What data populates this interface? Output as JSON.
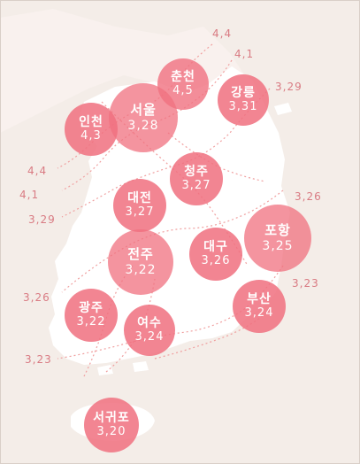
{
  "map": {
    "cities": [
      {
        "name": "서울",
        "date": "3,28"
      },
      {
        "name": "춘천",
        "date": "4,5"
      },
      {
        "name": "강릉",
        "date": "3,31"
      },
      {
        "name": "인천",
        "date": "4,3"
      },
      {
        "name": "청주",
        "date": "3,27"
      },
      {
        "name": "대전",
        "date": "3,27"
      },
      {
        "name": "포항",
        "date": "3,25"
      },
      {
        "name": "전주",
        "date": "3,22"
      },
      {
        "name": "대구",
        "date": "3,26"
      },
      {
        "name": "광주",
        "date": "3,22"
      },
      {
        "name": "부산",
        "date": "3,24"
      },
      {
        "name": "여수",
        "date": "3,24"
      },
      {
        "name": "서귀포",
        "date": "3,20"
      }
    ],
    "isoline_labels": [
      "4,4",
      "4,1",
      "3,29",
      "4,4",
      "4,1",
      "3,29",
      "3,26",
      "3,26",
      "3,23",
      "3,23"
    ],
    "colors": {
      "land": "#ffffff",
      "sea": "#f4ede8",
      "bubble": "#f0707f",
      "isoline": "#f0a0a0",
      "label": "#d97b83"
    }
  }
}
